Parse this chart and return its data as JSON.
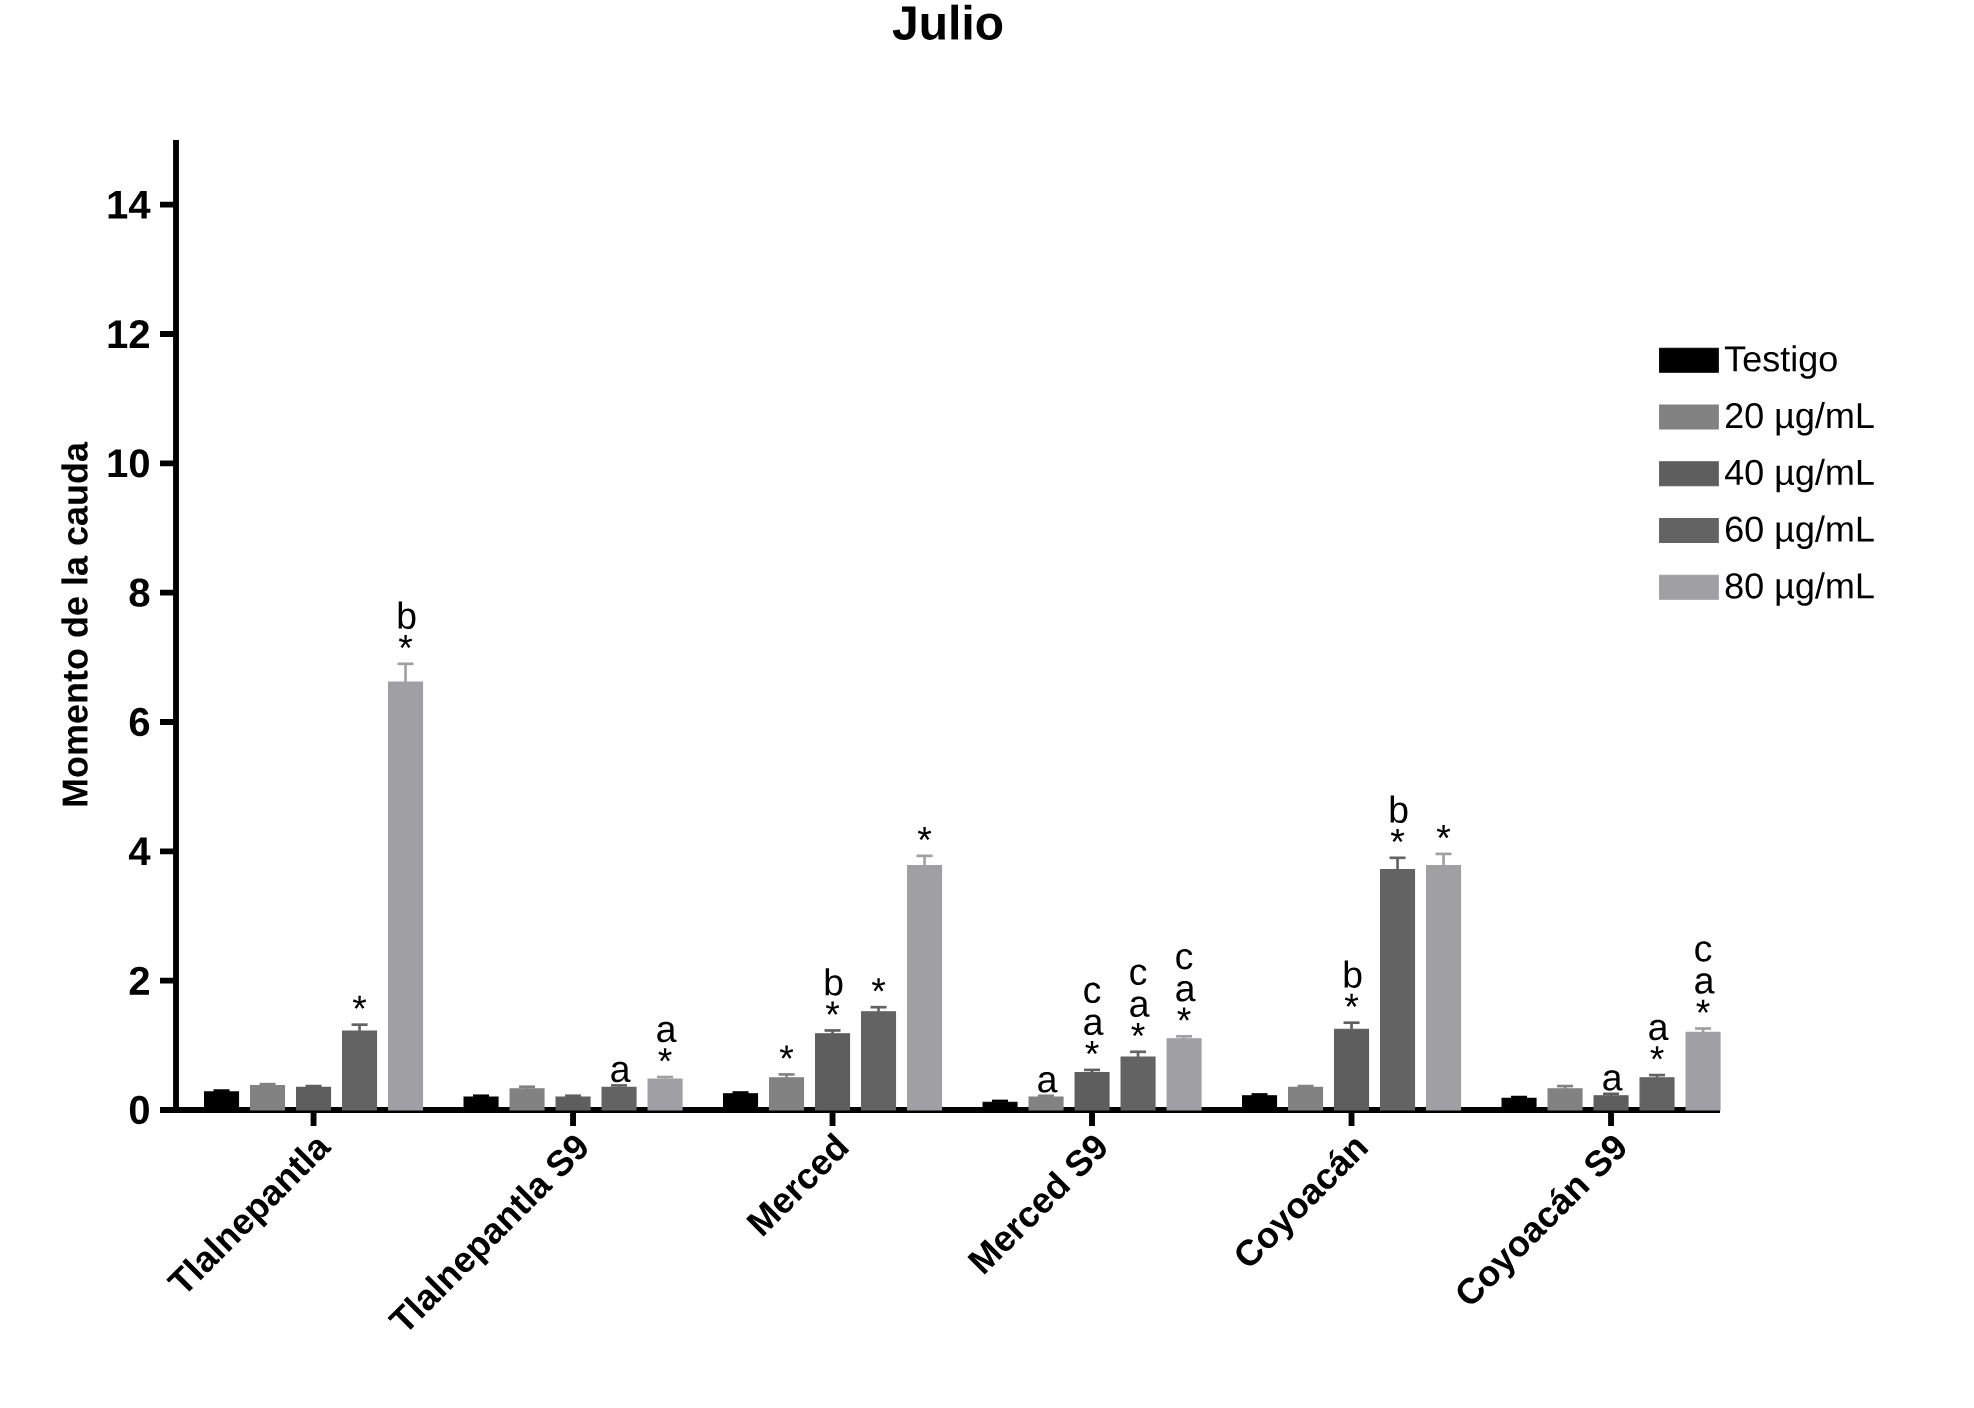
{
  "chart_data": {
    "type": "bar",
    "title": "Julio",
    "ylabel": "Momento de la cauda",
    "categories": [
      "Tlalnepantla",
      "Tlalnepantla S9",
      "Merced",
      "Merced S9",
      "Coyoacán",
      "Coyoacán S9"
    ],
    "series": [
      {
        "name": "Testigo",
        "color": "#000000",
        "values": [
          0.28,
          0.2,
          0.25,
          0.12,
          0.22,
          0.18
        ],
        "errors": [
          0.02,
          0.02,
          0.02,
          0.02,
          0.02,
          0.02
        ],
        "value_labels": [
          null,
          null,
          null,
          null,
          null,
          null
        ]
      },
      {
        "name": "20 µg/mL",
        "color": "#828282",
        "values": [
          0.38,
          0.33,
          0.5,
          0.2,
          0.35,
          0.33
        ],
        "errors": [
          0.02,
          0.03,
          0.05,
          0.02,
          0.02,
          0.04
        ],
        "value_labels": [
          null,
          null,
          "*",
          "a",
          null,
          null
        ]
      },
      {
        "name": "40 µg/mL",
        "color": "#5e5e5e",
        "values": [
          0.35,
          0.2,
          1.18,
          0.58,
          1.25,
          0.22
        ],
        "errors": [
          0.02,
          0.02,
          0.05,
          0.04,
          0.1,
          0.03
        ],
        "value_labels": [
          null,
          null,
          "b *",
          "c a *",
          "b *",
          "a"
        ]
      },
      {
        "name": "60 µg/mL",
        "color": "#636363",
        "values": [
          1.22,
          0.35,
          1.52,
          0.82,
          3.72,
          0.5
        ],
        "errors": [
          0.1,
          0.03,
          0.07,
          0.08,
          0.18,
          0.04
        ],
        "value_labels": [
          "*",
          "a",
          "*",
          "c a *",
          "b *",
          "a *"
        ]
      },
      {
        "name": "80 µg/mL",
        "color": "#a0a0a4",
        "values": [
          6.62,
          0.48,
          3.78,
          1.1,
          3.78,
          1.2
        ],
        "errors": [
          0.28,
          0.03,
          0.15,
          0.04,
          0.18,
          0.06
        ],
        "value_labels": [
          "b *",
          "a *",
          "*",
          "c a *",
          "*",
          "c a *"
        ]
      }
    ],
    "ylim": [
      0,
      15
    ],
    "yticks": [
      0,
      2,
      4,
      6,
      8,
      10,
      12,
      14
    ],
    "legend": "right"
  }
}
